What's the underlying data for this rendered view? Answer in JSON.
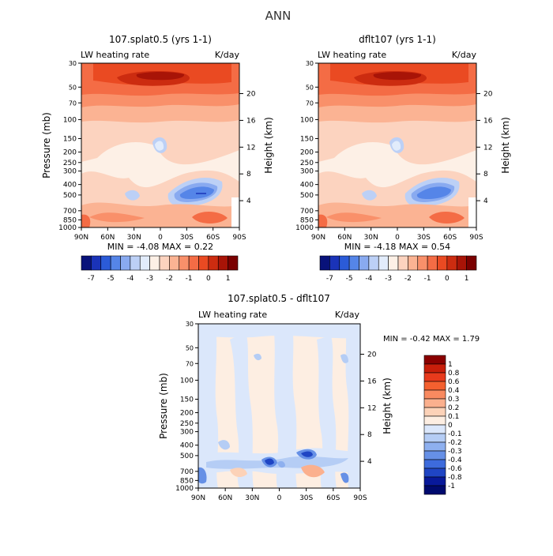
{
  "page_title": "ANN",
  "chart_data": [
    {
      "type": "heatmap",
      "title": "107.splat0.5 (yrs 1-1)",
      "left_label": "LW heating rate",
      "units": "K/day",
      "ylabel": "Pressure (mb)",
      "ylabel_right": "Height (km)",
      "x_ticks": [
        "90N",
        "60N",
        "30N",
        "0",
        "30S",
        "60S",
        "90S"
      ],
      "y_ticks": [
        "30",
        "50",
        "70",
        "100",
        "150",
        "200",
        "250",
        "300",
        "400",
        "500",
        "700",
        "850",
        "1000"
      ],
      "y_ticks_right": [
        "20",
        "16",
        "12",
        "8",
        "4"
      ],
      "stats": "MIN =  -4.08   MAX =   0.22",
      "colorbar_labels": [
        "-7",
        "-5",
        "-4",
        "-3",
        "-2",
        "-1",
        "0",
        "1"
      ],
      "colorbar_colors": [
        "#08127a",
        "#1a33b8",
        "#2b5bd8",
        "#5585e8",
        "#89aaf0",
        "#bcd0f6",
        "#e2ecfb",
        "#fdf0e6",
        "#fcd3bf",
        "#fbb393",
        "#f9906a",
        "#f46c45",
        "#ea4a22",
        "#cc2c10",
        "#a81407",
        "#7a0000"
      ]
    },
    {
      "type": "heatmap",
      "title": "dflt107 (yrs 1-1)",
      "left_label": "LW heating rate",
      "units": "K/day",
      "ylabel": "Pressure (mb)",
      "ylabel_right": "Height (km)",
      "x_ticks": [
        "90N",
        "60N",
        "30N",
        "0",
        "30S",
        "60S",
        "90S"
      ],
      "y_ticks": [
        "30",
        "50",
        "70",
        "100",
        "150",
        "200",
        "250",
        "300",
        "400",
        "500",
        "700",
        "850",
        "1000"
      ],
      "y_ticks_right": [
        "20",
        "16",
        "12",
        "8",
        "4"
      ],
      "stats": "MIN =  -4.18   MAX =   0.54",
      "colorbar_labels": [
        "-7",
        "-5",
        "-4",
        "-3",
        "-2",
        "-1",
        "0",
        "1"
      ],
      "colorbar_colors": [
        "#08127a",
        "#1a33b8",
        "#2b5bd8",
        "#5585e8",
        "#89aaf0",
        "#bcd0f6",
        "#e2ecfb",
        "#fdf0e6",
        "#fcd3bf",
        "#fbb393",
        "#f9906a",
        "#f46c45",
        "#ea4a22",
        "#cc2c10",
        "#a81407",
        "#7a0000"
      ]
    },
    {
      "type": "heatmap",
      "title": "107.splat0.5 - dflt107",
      "left_label": "LW heating rate",
      "units": "K/day",
      "ylabel": "Pressure (mb)",
      "ylabel_right": "Height (km)",
      "x_ticks": [
        "90N",
        "60N",
        "30N",
        "0",
        "30S",
        "60S",
        "90S"
      ],
      "y_ticks": [
        "30",
        "50",
        "70",
        "100",
        "150",
        "200",
        "250",
        "300",
        "400",
        "500",
        "700",
        "850",
        "1000"
      ],
      "y_ticks_right": [
        "20",
        "16",
        "12",
        "8",
        "4"
      ],
      "stats": "MIN =   -0.42   MAX =   1.79",
      "colorbar_labels": [
        "1",
        "0.8",
        "0.6",
        "0.4",
        "0.3",
        "0.2",
        "0.1",
        "0",
        "-0.1",
        "-0.2",
        "-0.3",
        "-0.4",
        "-0.6",
        "-0.8",
        "-1"
      ],
      "colorbar_colors": [
        "#8a0000",
        "#c81e0a",
        "#e83a1c",
        "#f4602f",
        "#f98a60",
        "#fbb08e",
        "#fcd2b8",
        "#fdeee2",
        "#dbe7fb",
        "#b5cdf5",
        "#8eb0ef",
        "#6690e6",
        "#3d6bdc",
        "#1f45c4",
        "#08199a",
        "#000a6e"
      ]
    }
  ]
}
